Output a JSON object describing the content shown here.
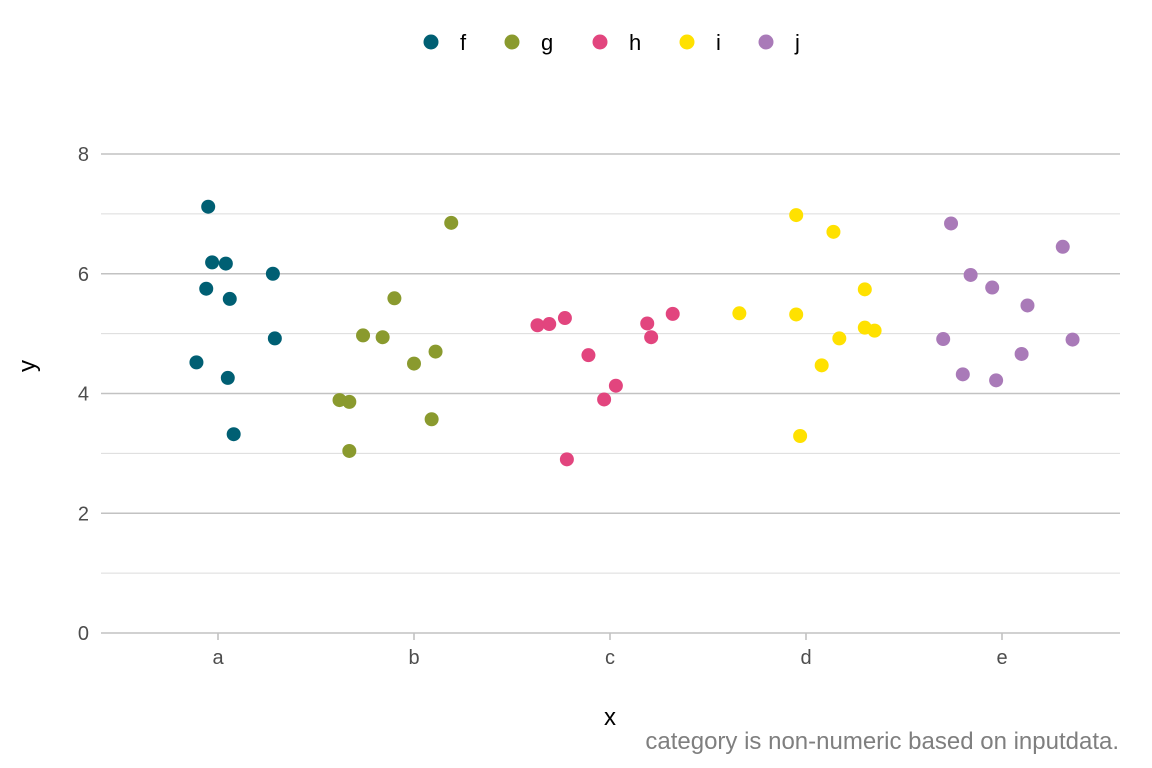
{
  "chart_data": {
    "type": "scatter",
    "categories": [
      "a",
      "b",
      "c",
      "d",
      "e"
    ],
    "xlabel": "x",
    "ylabel": "y",
    "ylim": [
      0,
      8
    ],
    "yticks": [
      0,
      2,
      4,
      6,
      8
    ],
    "grid": true,
    "legend_position": "top",
    "caption": "category is non-numeric based on inputdata.",
    "series": [
      {
        "name": "f",
        "color": "#005f73",
        "points": [
          {
            "x": "a",
            "jitter": -0.05,
            "y": 7.12
          },
          {
            "x": "a",
            "jitter": -0.03,
            "y": 6.19
          },
          {
            "x": "a",
            "jitter": 0.04,
            "y": 6.17
          },
          {
            "x": "a",
            "jitter": -0.06,
            "y": 5.75
          },
          {
            "x": "a",
            "jitter": 0.06,
            "y": 5.58
          },
          {
            "x": "a",
            "jitter": 0.28,
            "y": 6.0
          },
          {
            "x": "a",
            "jitter": 0.29,
            "y": 4.92
          },
          {
            "x": "a",
            "jitter": -0.11,
            "y": 4.52
          },
          {
            "x": "a",
            "jitter": 0.05,
            "y": 4.26
          },
          {
            "x": "a",
            "jitter": 0.08,
            "y": 3.32
          }
        ]
      },
      {
        "name": "g",
        "color": "#8a9a2e",
        "points": [
          {
            "x": "b",
            "jitter": 0.19,
            "y": 6.85
          },
          {
            "x": "b",
            "jitter": -0.1,
            "y": 5.59
          },
          {
            "x": "b",
            "jitter": -0.26,
            "y": 4.97
          },
          {
            "x": "b",
            "jitter": -0.16,
            "y": 4.94
          },
          {
            "x": "b",
            "jitter": 0.11,
            "y": 4.7
          },
          {
            "x": "b",
            "jitter": 0.0,
            "y": 4.5
          },
          {
            "x": "b",
            "jitter": -0.38,
            "y": 3.89
          },
          {
            "x": "b",
            "jitter": -0.33,
            "y": 3.86
          },
          {
            "x": "b",
            "jitter": 0.09,
            "y": 3.57
          },
          {
            "x": "b",
            "jitter": -0.33,
            "y": 3.04
          }
        ]
      },
      {
        "name": "h",
        "color": "#e2457e",
        "points": [
          {
            "x": "c",
            "jitter": -0.37,
            "y": 5.14
          },
          {
            "x": "c",
            "jitter": -0.31,
            "y": 5.16
          },
          {
            "x": "c",
            "jitter": -0.23,
            "y": 5.26
          },
          {
            "x": "c",
            "jitter": 0.19,
            "y": 5.17
          },
          {
            "x": "c",
            "jitter": 0.32,
            "y": 5.33
          },
          {
            "x": "c",
            "jitter": 0.21,
            "y": 4.94
          },
          {
            "x": "c",
            "jitter": -0.11,
            "y": 4.64
          },
          {
            "x": "c",
            "jitter": 0.03,
            "y": 4.13
          },
          {
            "x": "c",
            "jitter": -0.03,
            "y": 3.9
          },
          {
            "x": "c",
            "jitter": -0.22,
            "y": 2.9
          }
        ]
      },
      {
        "name": "i",
        "color": "#ffe100",
        "points": [
          {
            "x": "d",
            "jitter": -0.05,
            "y": 6.98
          },
          {
            "x": "d",
            "jitter": 0.14,
            "y": 6.7
          },
          {
            "x": "d",
            "jitter": 0.3,
            "y": 5.74
          },
          {
            "x": "d",
            "jitter": -0.34,
            "y": 5.34
          },
          {
            "x": "d",
            "jitter": -0.05,
            "y": 5.32
          },
          {
            "x": "d",
            "jitter": 0.3,
            "y": 5.1
          },
          {
            "x": "d",
            "jitter": 0.35,
            "y": 5.05
          },
          {
            "x": "d",
            "jitter": 0.17,
            "y": 4.92
          },
          {
            "x": "d",
            "jitter": 0.08,
            "y": 4.47
          },
          {
            "x": "d",
            "jitter": -0.03,
            "y": 3.29
          }
        ]
      },
      {
        "name": "j",
        "color": "#a97ab8",
        "points": [
          {
            "x": "e",
            "jitter": -0.26,
            "y": 6.84
          },
          {
            "x": "e",
            "jitter": 0.31,
            "y": 6.45
          },
          {
            "x": "e",
            "jitter": -0.16,
            "y": 5.98
          },
          {
            "x": "e",
            "jitter": -0.05,
            "y": 5.77
          },
          {
            "x": "e",
            "jitter": 0.13,
            "y": 5.47
          },
          {
            "x": "e",
            "jitter": -0.3,
            "y": 4.91
          },
          {
            "x": "e",
            "jitter": 0.36,
            "y": 4.9
          },
          {
            "x": "e",
            "jitter": 0.1,
            "y": 4.66
          },
          {
            "x": "e",
            "jitter": -0.2,
            "y": 4.32
          },
          {
            "x": "e",
            "jitter": -0.03,
            "y": 4.22
          }
        ]
      }
    ]
  }
}
